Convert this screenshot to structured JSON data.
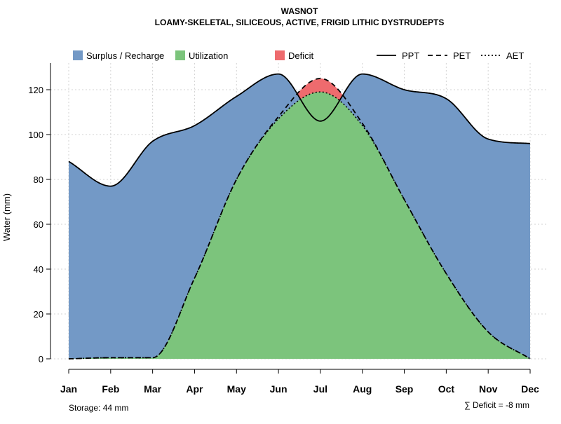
{
  "chart_data": {
    "type": "area",
    "title": "WASNOT",
    "subtitle": "LOAMY-SKELETAL, SILICEOUS, ACTIVE, FRIGID LITHIC DYSTRUDEPTS",
    "xlabel": "",
    "ylabel": "Water (mm)",
    "ylim": [
      0,
      130
    ],
    "yticks": [
      0,
      20,
      40,
      60,
      80,
      100,
      120
    ],
    "grid": true,
    "categories": [
      "Jan",
      "Feb",
      "Mar",
      "Apr",
      "May",
      "Jun",
      "Jul",
      "Aug",
      "Sep",
      "Oct",
      "Nov",
      "Dec"
    ],
    "series": [
      {
        "name": "PPT",
        "line": "solid",
        "values": [
          88,
          77,
          97,
          104,
          117,
          127,
          106,
          127,
          120,
          116,
          98,
          96
        ]
      },
      {
        "name": "PET",
        "line": "dashed",
        "values": [
          0,
          0.5,
          0.5,
          36,
          80,
          108,
          125,
          105,
          71,
          38,
          12,
          0
        ]
      },
      {
        "name": "AET",
        "line": "dotted",
        "values": [
          0,
          0.5,
          0.5,
          36,
          80,
          107,
          119,
          104,
          71,
          38,
          12,
          0
        ]
      }
    ],
    "areas": [
      {
        "name": "Surplus / Recharge",
        "color": "#7399C6"
      },
      {
        "name": "Utilization",
        "color": "#7CC47C"
      },
      {
        "name": "Deficit",
        "color": "#EE6B6E"
      }
    ],
    "legend": {
      "position": "top",
      "area_entries": [
        "Surplus / Recharge",
        "Utilization",
        "Deficit"
      ],
      "line_entries": [
        "PPT",
        "PET",
        "AET"
      ]
    },
    "storage_label": "Storage: 44 mm",
    "deficit_label": "∑ Deficit = -8 mm"
  }
}
